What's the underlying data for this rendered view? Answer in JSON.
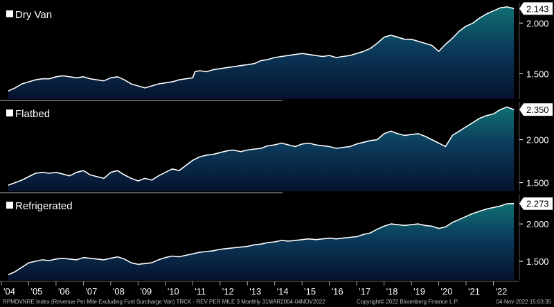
{
  "chart_data": {
    "type": "area",
    "x_ticks": [
      "'04",
      "'05",
      "'06",
      "'07",
      "'08",
      "'09",
      "'10",
      "'11",
      "'12",
      "'13",
      "'14",
      "'15",
      "'16",
      "'17",
      "'18",
      "'19",
      "'20",
      "'21",
      "'22"
    ],
    "panels": [
      {
        "name": "Dry Van",
        "last_value": "2.143",
        "y_ticks": [
          "2.000",
          "1.500"
        ],
        "ylim": [
          1.25,
          2.2
        ],
        "x": [
          2004.25,
          2004.5,
          2004.75,
          2005.0,
          2005.25,
          2005.5,
          2005.75,
          2006.0,
          2006.25,
          2006.5,
          2006.75,
          2007.0,
          2007.25,
          2007.5,
          2007.75,
          2008.0,
          2008.25,
          2008.5,
          2008.75,
          2009.0,
          2009.25,
          2009.5,
          2009.75,
          2010.0,
          2010.25,
          2010.5,
          2010.75,
          2011.0,
          2011.08,
          2011.25,
          2011.5,
          2011.75,
          2012.0,
          2012.25,
          2012.5,
          2012.75,
          2013.0,
          2013.25,
          2013.5,
          2013.75,
          2014.0,
          2014.25,
          2014.5,
          2014.75,
          2015.0,
          2015.25,
          2015.5,
          2015.75,
          2016.0,
          2016.25,
          2016.5,
          2016.75,
          2017.0,
          2017.25,
          2017.5,
          2017.75,
          2018.0,
          2018.25,
          2018.5,
          2018.75,
          2019.0,
          2019.25,
          2019.5,
          2019.75,
          2020.0,
          2020.25,
          2020.5,
          2020.75,
          2021.0,
          2021.25,
          2021.5,
          2021.75,
          2022.0,
          2022.25,
          2022.5,
          2022.75
        ],
        "values": [
          1.33,
          1.36,
          1.4,
          1.42,
          1.44,
          1.45,
          1.45,
          1.47,
          1.48,
          1.47,
          1.46,
          1.47,
          1.45,
          1.44,
          1.43,
          1.46,
          1.47,
          1.44,
          1.4,
          1.38,
          1.36,
          1.38,
          1.4,
          1.41,
          1.42,
          1.44,
          1.45,
          1.46,
          1.52,
          1.53,
          1.52,
          1.54,
          1.55,
          1.56,
          1.57,
          1.58,
          1.59,
          1.6,
          1.63,
          1.64,
          1.66,
          1.67,
          1.68,
          1.69,
          1.7,
          1.69,
          1.68,
          1.67,
          1.68,
          1.66,
          1.67,
          1.68,
          1.7,
          1.72,
          1.75,
          1.8,
          1.86,
          1.88,
          1.86,
          1.84,
          1.84,
          1.82,
          1.8,
          1.78,
          1.72,
          1.79,
          1.85,
          1.92,
          1.97,
          2.0,
          2.05,
          2.09,
          2.12,
          2.15,
          2.16,
          2.143
        ]
      },
      {
        "name": "Flatbed",
        "last_value": "2.350",
        "y_ticks": [
          "2.000",
          "1.500"
        ],
        "ylim": [
          1.4,
          2.44
        ],
        "x": [
          2004.25,
          2004.5,
          2004.75,
          2005.0,
          2005.25,
          2005.5,
          2005.75,
          2006.0,
          2006.25,
          2006.5,
          2006.75,
          2007.0,
          2007.25,
          2007.5,
          2007.75,
          2008.0,
          2008.25,
          2008.5,
          2008.75,
          2009.0,
          2009.25,
          2009.5,
          2009.75,
          2010.0,
          2010.25,
          2010.5,
          2010.75,
          2011.0,
          2011.25,
          2011.5,
          2011.75,
          2012.0,
          2012.25,
          2012.5,
          2012.75,
          2013.0,
          2013.25,
          2013.5,
          2013.75,
          2014.0,
          2014.25,
          2014.5,
          2014.75,
          2015.0,
          2015.25,
          2015.5,
          2015.75,
          2016.0,
          2016.25,
          2016.5,
          2016.75,
          2017.0,
          2017.25,
          2017.5,
          2017.75,
          2018.0,
          2018.25,
          2018.5,
          2018.75,
          2019.0,
          2019.25,
          2019.5,
          2019.75,
          2020.0,
          2020.25,
          2020.5,
          2020.75,
          2021.0,
          2021.25,
          2021.5,
          2021.75,
          2022.0,
          2022.25,
          2022.5,
          2022.75
        ],
        "values": [
          1.47,
          1.5,
          1.53,
          1.57,
          1.61,
          1.62,
          1.61,
          1.62,
          1.6,
          1.58,
          1.62,
          1.64,
          1.59,
          1.57,
          1.55,
          1.62,
          1.64,
          1.59,
          1.55,
          1.52,
          1.55,
          1.53,
          1.58,
          1.62,
          1.66,
          1.64,
          1.7,
          1.76,
          1.8,
          1.82,
          1.83,
          1.85,
          1.87,
          1.88,
          1.86,
          1.88,
          1.89,
          1.9,
          1.93,
          1.94,
          1.96,
          1.94,
          1.92,
          1.95,
          1.96,
          1.94,
          1.93,
          1.92,
          1.9,
          1.91,
          1.92,
          1.95,
          1.97,
          1.99,
          2.0,
          2.07,
          2.1,
          2.07,
          2.05,
          2.06,
          2.07,
          2.04,
          2.0,
          1.96,
          1.92,
          2.05,
          2.1,
          2.15,
          2.2,
          2.25,
          2.28,
          2.3,
          2.35,
          2.38,
          2.35
        ]
      },
      {
        "name": "Refrigerated",
        "last_value": "2.273",
        "y_ticks": [
          "2.000",
          "1.500"
        ],
        "ylim": [
          1.25,
          2.4
        ],
        "x": [
          2004.25,
          2004.5,
          2004.75,
          2005.0,
          2005.25,
          2005.5,
          2005.75,
          2006.0,
          2006.25,
          2006.5,
          2006.75,
          2007.0,
          2007.25,
          2007.5,
          2007.75,
          2008.0,
          2008.25,
          2008.5,
          2008.75,
          2009.0,
          2009.25,
          2009.5,
          2009.75,
          2010.0,
          2010.25,
          2010.5,
          2010.75,
          2011.0,
          2011.25,
          2011.5,
          2011.75,
          2012.0,
          2012.25,
          2012.5,
          2012.75,
          2013.0,
          2013.25,
          2013.5,
          2013.75,
          2014.0,
          2014.25,
          2014.5,
          2014.75,
          2015.0,
          2015.25,
          2015.5,
          2015.75,
          2016.0,
          2016.25,
          2016.5,
          2016.75,
          2017.0,
          2017.25,
          2017.5,
          2017.75,
          2018.0,
          2018.25,
          2018.5,
          2018.75,
          2019.0,
          2019.25,
          2019.5,
          2019.75,
          2020.0,
          2020.25,
          2020.5,
          2020.75,
          2021.0,
          2021.25,
          2021.5,
          2021.75,
          2022.0,
          2022.25,
          2022.5,
          2022.75
        ],
        "values": [
          1.32,
          1.36,
          1.42,
          1.48,
          1.5,
          1.52,
          1.51,
          1.53,
          1.54,
          1.53,
          1.52,
          1.55,
          1.54,
          1.53,
          1.52,
          1.54,
          1.56,
          1.53,
          1.48,
          1.46,
          1.47,
          1.48,
          1.52,
          1.55,
          1.57,
          1.56,
          1.58,
          1.6,
          1.62,
          1.63,
          1.64,
          1.66,
          1.67,
          1.68,
          1.69,
          1.7,
          1.72,
          1.73,
          1.75,
          1.76,
          1.78,
          1.77,
          1.78,
          1.79,
          1.8,
          1.79,
          1.8,
          1.81,
          1.8,
          1.81,
          1.82,
          1.83,
          1.86,
          1.88,
          1.93,
          1.97,
          2.0,
          1.99,
          1.98,
          1.99,
          2.0,
          1.98,
          1.97,
          1.94,
          1.96,
          2.02,
          2.06,
          2.1,
          2.14,
          2.17,
          2.2,
          2.22,
          2.24,
          2.27,
          2.273
        ]
      }
    ],
    "grid": false,
    "legend": "top-left"
  },
  "footer": {
    "source": "RPMDVNRE Index (Revenue Per Mile Excluding Fuel Surcharge Van) TRCK - REV PER MILE 3  Monthly 31MAR2004-04NOV2022",
    "copyright": "Copyright© 2022 Bloomberg Finance L.P.",
    "timestamp": "04-Nov-2022 15:03:35"
  },
  "colors": {
    "background": "#000000",
    "fill_top": "#0f6f72",
    "fill_mid": "#0b3b5c",
    "fill_bottom": "#06122e",
    "line": "#ffffff",
    "axis_label": "#ffffff",
    "divider": "#7a7a7a"
  }
}
